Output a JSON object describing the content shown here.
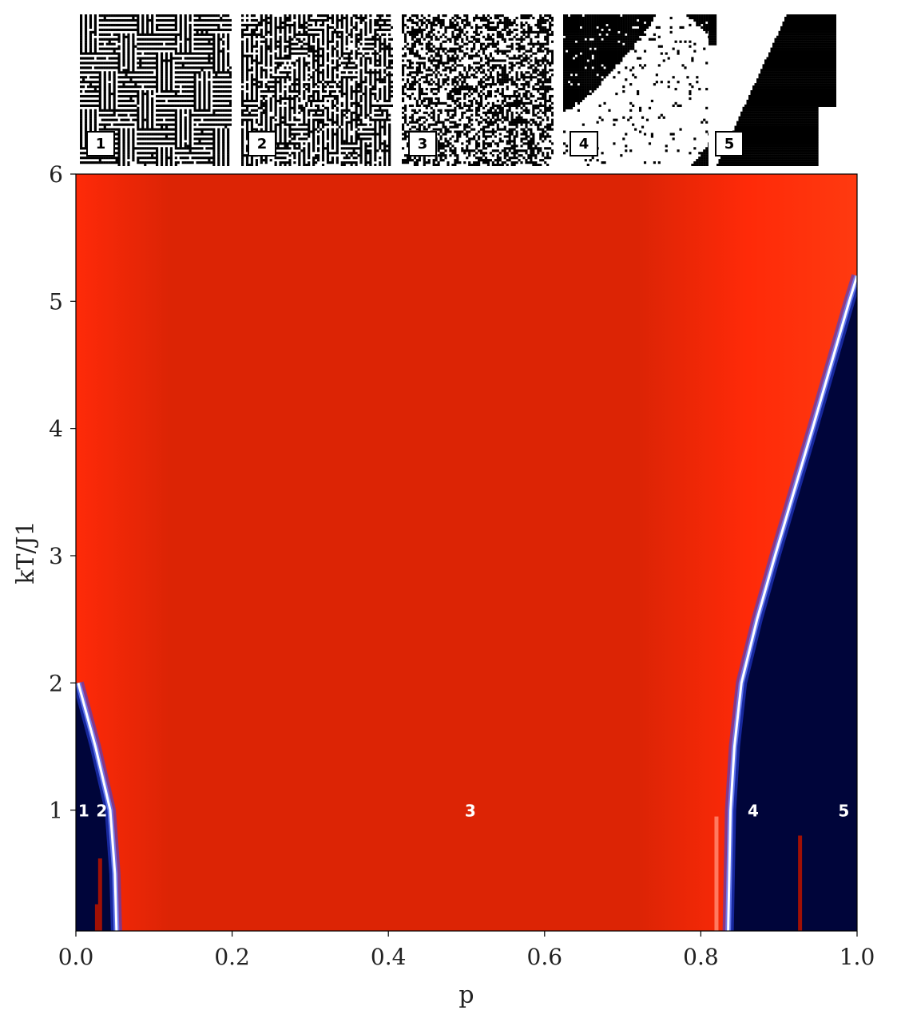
{
  "chart_data": {
    "type": "heatmap",
    "title": "",
    "xlabel": "p",
    "ylabel": "kT/J1",
    "xlim": [
      0.0,
      1.0
    ],
    "ylim": [
      0.05,
      6.0
    ],
    "x_ticks": [
      "0.0",
      "0.2",
      "0.4",
      "0.6",
      "0.8",
      "1.0"
    ],
    "y_ticks": [
      "1",
      "2",
      "3",
      "4",
      "5",
      "6"
    ],
    "colors": {
      "disordered": "#dc2405",
      "disordered_bright": "#ff2a08",
      "ordered": "#00053a",
      "transition_blue": "#2a46ee",
      "transition_white": "#ffffff"
    },
    "boundaries": {
      "left": [
        {
          "kT": 0.05,
          "p": 0.052
        },
        {
          "kT": 0.5,
          "p": 0.05
        },
        {
          "kT": 1.0,
          "p": 0.044
        },
        {
          "kT": 1.5,
          "p": 0.025
        },
        {
          "kT": 2.0,
          "p": 0.003
        }
      ],
      "right": [
        {
          "kT": 0.05,
          "p": 0.835
        },
        {
          "kT": 1.0,
          "p": 0.838
        },
        {
          "kT": 1.5,
          "p": 0.843
        },
        {
          "kT": 2.0,
          "p": 0.852
        },
        {
          "kT": 2.5,
          "p": 0.872
        },
        {
          "kT": 3.0,
          "p": 0.895
        },
        {
          "kT": 4.0,
          "p": 0.943
        },
        {
          "kT": 5.0,
          "p": 0.99
        },
        {
          "kT": 5.2,
          "p": 1.0
        }
      ]
    },
    "artifacts": [
      {
        "p": 0.031,
        "kT_max": 0.62
      },
      {
        "p": 0.027,
        "kT_max": 0.26
      },
      {
        "p": 0.927,
        "kT_max": 0.8
      },
      {
        "p": 0.82,
        "kT_max": 0.95
      }
    ],
    "region_labels": [
      {
        "text": "1",
        "p": 0.01,
        "kT": 1.0
      },
      {
        "text": "2",
        "p": 0.033,
        "kT": 1.0
      },
      {
        "text": "3",
        "p": 0.505,
        "kT": 1.0
      },
      {
        "text": "4",
        "p": 0.867,
        "kT": 1.0
      },
      {
        "text": "5",
        "p": 0.983,
        "kT": 1.0
      }
    ],
    "insets": [
      {
        "label": "1",
        "pattern": "maze-stripes"
      },
      {
        "label": "2",
        "pattern": "noisy-stripes"
      },
      {
        "label": "3",
        "pattern": "random-pixels"
      },
      {
        "label": "4",
        "pattern": "large-domains"
      },
      {
        "label": "5",
        "pattern": "single-domain"
      }
    ]
  }
}
